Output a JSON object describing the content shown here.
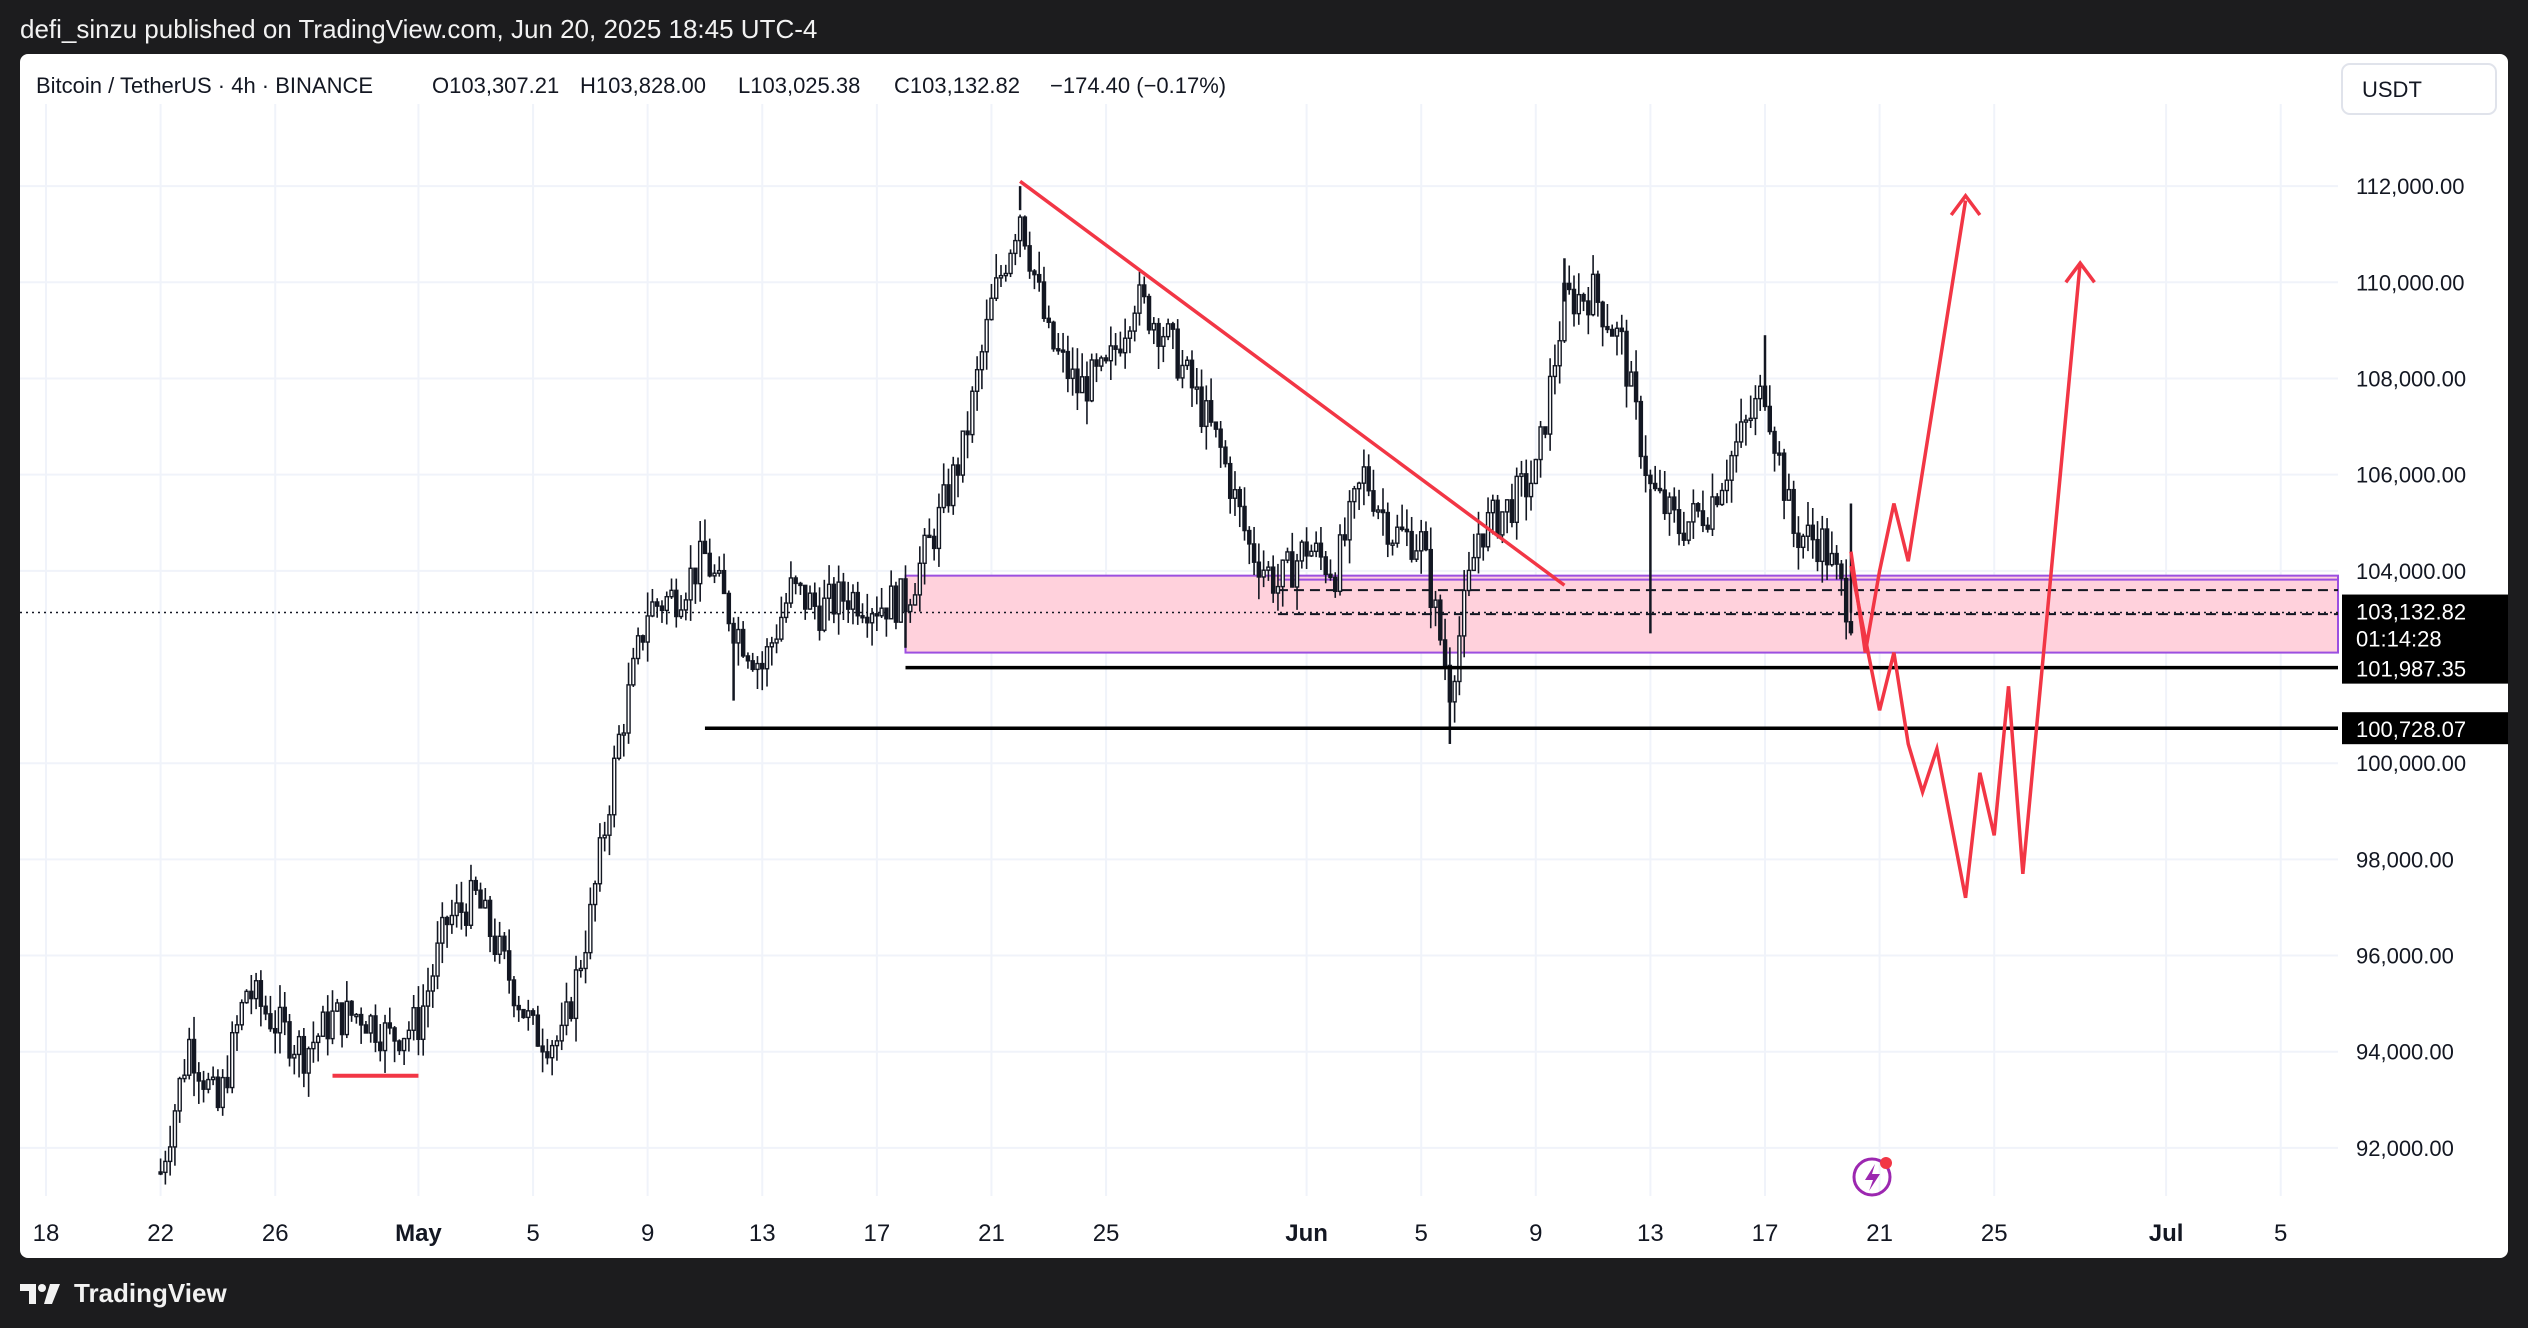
{
  "header": {
    "published_text": "defi_sinzu published on TradingView.com, Jun 20, 2025 18:45 UTC-4"
  },
  "symbol_bar": {
    "symbol": "Bitcoin / TetherUS · 4h · BINANCE",
    "open_label": "O",
    "open": "103,307.21",
    "high_label": "H",
    "high": "103,828.00",
    "low_label": "L",
    "low": "103,025.38",
    "close_label": "C",
    "close": "103,132.82",
    "change": "−174.40 (−0.17%)"
  },
  "currency_button": "USDT",
  "footer": {
    "brand": "TradingView"
  },
  "colors": {
    "candle": "#131722",
    "trendline": "#f23645",
    "zone_fill": "#ffd1dc",
    "zone_border": "#9c4fe0",
    "label_bg": "#000000",
    "label_text": "#ffffff",
    "grid": "#f0f3fa"
  },
  "chart_data": {
    "type": "candlestick",
    "series_type": "ohlc-4h",
    "ylim": [
      91000,
      113500
    ],
    "yticks": [
      {
        "value": 112000,
        "label": "112,000.00"
      },
      {
        "value": 110000,
        "label": "110,000.00"
      },
      {
        "value": 108000,
        "label": "108,000.00"
      },
      {
        "value": 106000,
        "label": "106,000.00"
      },
      {
        "value": 104000,
        "label": "104,000.00"
      },
      {
        "value": 100000,
        "label": "100,000.00"
      },
      {
        "value": 98000,
        "label": "98,000.00"
      },
      {
        "value": 96000,
        "label": "96,000.00"
      },
      {
        "value": 94000,
        "label": "94,000.00"
      },
      {
        "value": 92000,
        "label": "92,000.00"
      }
    ],
    "xlim": [
      "2025-04-18",
      "2025-07-07"
    ],
    "xticks": [
      {
        "date": "2025-04-18",
        "label": "18",
        "bold": false
      },
      {
        "date": "2025-04-22",
        "label": "22",
        "bold": false
      },
      {
        "date": "2025-04-26",
        "label": "26",
        "bold": false
      },
      {
        "date": "2025-05-01",
        "label": "May",
        "bold": true
      },
      {
        "date": "2025-05-05",
        "label": "5",
        "bold": false
      },
      {
        "date": "2025-05-09",
        "label": "9",
        "bold": false
      },
      {
        "date": "2025-05-13",
        "label": "13",
        "bold": false
      },
      {
        "date": "2025-05-17",
        "label": "17",
        "bold": false
      },
      {
        "date": "2025-05-21",
        "label": "21",
        "bold": false
      },
      {
        "date": "2025-05-25",
        "label": "25",
        "bold": false
      },
      {
        "date": "2025-06-01",
        "label": "Jun",
        "bold": true
      },
      {
        "date": "2025-06-05",
        "label": "5",
        "bold": false
      },
      {
        "date": "2025-06-09",
        "label": "9",
        "bold": false
      },
      {
        "date": "2025-06-13",
        "label": "13",
        "bold": false
      },
      {
        "date": "2025-06-17",
        "label": "17",
        "bold": false
      },
      {
        "date": "2025-06-21",
        "label": "21",
        "bold": false
      },
      {
        "date": "2025-06-25",
        "label": "25",
        "bold": false
      },
      {
        "date": "2025-07-01",
        "label": "Jul",
        "bold": true
      },
      {
        "date": "2025-07-05",
        "label": "5",
        "bold": false
      }
    ],
    "path": [
      [
        "2025-04-22",
        91500
      ],
      [
        "2025-04-23",
        94200
      ],
      [
        "2025-04-24",
        92800
      ],
      [
        "2025-04-25",
        95300
      ],
      [
        "2025-04-26",
        94600
      ],
      [
        "2025-04-27",
        94000
      ],
      [
        "2025-04-28",
        94700
      ],
      [
        "2025-04-29",
        94800
      ],
      [
        "2025-04-30",
        94300
      ],
      [
        "2025-05-01",
        94600
      ],
      [
        "2025-05-02",
        96700
      ],
      [
        "2025-05-03",
        97200
      ],
      [
        "2025-05-04",
        95800
      ],
      [
        "2025-05-05",
        94400
      ],
      [
        "2025-05-06",
        94200
      ],
      [
        "2025-05-07",
        96800
      ],
      [
        "2025-05-08",
        100500
      ],
      [
        "2025-05-09",
        103200
      ],
      [
        "2025-05-10",
        103500
      ],
      [
        "2025-05-11",
        104300
      ],
      [
        "2025-05-12",
        102900
      ],
      [
        "2025-05-13",
        102000
      ],
      [
        "2025-05-14",
        103600
      ],
      [
        "2025-05-15",
        103200
      ],
      [
        "2025-05-16",
        103500
      ],
      [
        "2025-05-17",
        103300
      ],
      [
        "2025-05-18",
        103400
      ],
      [
        "2025-05-19",
        104800
      ],
      [
        "2025-05-20",
        106500
      ],
      [
        "2025-05-21",
        109500
      ],
      [
        "2025-05-22",
        111500
      ],
      [
        "2025-05-23",
        108800
      ],
      [
        "2025-05-24",
        107800
      ],
      [
        "2025-05-25",
        108100
      ],
      [
        "2025-05-26",
        109700
      ],
      [
        "2025-05-27",
        109000
      ],
      [
        "2025-05-28",
        107800
      ],
      [
        "2025-05-29",
        106500
      ],
      [
        "2025-05-30",
        104500
      ],
      [
        "2025-05-31",
        103700
      ],
      [
        "2025-06-01",
        104500
      ],
      [
        "2025-06-02",
        104000
      ],
      [
        "2025-06-03",
        106000
      ],
      [
        "2025-06-04",
        104800
      ],
      [
        "2025-06-05",
        104600
      ],
      [
        "2025-06-06",
        101600
      ],
      [
        "2025-06-07",
        104800
      ],
      [
        "2025-06-08",
        105300
      ],
      [
        "2025-06-09",
        106000
      ],
      [
        "2025-06-10",
        109600
      ],
      [
        "2025-06-11",
        109800
      ],
      [
        "2025-06-12",
        108700
      ],
      [
        "2025-06-13",
        105700
      ],
      [
        "2025-06-14",
        104900
      ],
      [
        "2025-06-15",
        105300
      ],
      [
        "2025-06-16",
        106600
      ],
      [
        "2025-06-17",
        107800
      ],
      [
        "2025-06-18",
        104800
      ],
      [
        "2025-06-19",
        104600
      ],
      [
        "2025-06-20",
        103132
      ]
    ],
    "spikes": [
      [
        "2025-05-12",
        101300
      ],
      [
        "2025-05-18",
        102400
      ],
      [
        "2025-06-06",
        100400
      ],
      [
        "2025-06-13",
        102700
      ],
      [
        "2025-05-22",
        112000
      ],
      [
        "2025-06-10",
        110500
      ],
      [
        "2025-06-17",
        108900
      ],
      [
        "2025-06-20",
        105400
      ]
    ],
    "trendline": {
      "from": [
        "2025-05-22",
        112100
      ],
      "to": [
        "2025-06-10",
        103700
      ]
    },
    "zone": {
      "from": "2025-05-18",
      "to": "2025-07-07",
      "top": 103900,
      "bottom": 102300
    },
    "zone_lines": [
      {
        "from": "2025-05-31",
        "value": 103600,
        "style": "dashed"
      },
      {
        "from": "2025-05-31",
        "value": 103100,
        "style": "dashed"
      }
    ],
    "support_lines": [
      {
        "from": "2025-05-18",
        "value": 101987.35
      },
      {
        "from": "2025-05-11",
        "value": 100728.07
      }
    ],
    "small_mark": {
      "from": "2025-04-28",
      "to": "2025-05-01",
      "value": 93500
    },
    "arrow_1": [
      [
        "2025-06-20",
        104400
      ],
      [
        "2025-06-20T12",
        102300
      ],
      [
        "2025-06-21",
        104000
      ],
      [
        "2025-06-21T12",
        105400
      ],
      [
        "2025-06-22",
        104200
      ],
      [
        "2025-06-24",
        111700
      ]
    ],
    "arrow_1_head": [
      [
        "2025-06-23T12",
        111400
      ],
      [
        "2025-06-24",
        111800
      ],
      [
        "2025-06-24T12",
        111400
      ]
    ],
    "arrow_2": [
      [
        "2025-06-20",
        104100
      ],
      [
        "2025-06-21",
        101100
      ],
      [
        "2025-06-21T12",
        102300
      ],
      [
        "2025-06-22",
        100400
      ],
      [
        "2025-06-22T12",
        99400
      ],
      [
        "2025-06-23",
        100300
      ],
      [
        "2025-06-24",
        97200
      ],
      [
        "2025-06-24T12",
        99800
      ],
      [
        "2025-06-25",
        98500
      ],
      [
        "2025-06-25T12",
        101600
      ],
      [
        "2025-06-26",
        97700
      ],
      [
        "2025-06-28",
        110400
      ]
    ],
    "arrow_2_head": [
      [
        "2025-06-27T12",
        110000
      ],
      [
        "2025-06-28",
        110400
      ],
      [
        "2025-06-28T12",
        110000
      ]
    ],
    "price_labels": [
      {
        "value": 103132.82,
        "label": "103,132.82",
        "sub": "01:14:28"
      },
      {
        "value": 101987.35,
        "label": "101,987.35"
      },
      {
        "value": 100728.07,
        "label": "100,728.07"
      }
    ]
  }
}
